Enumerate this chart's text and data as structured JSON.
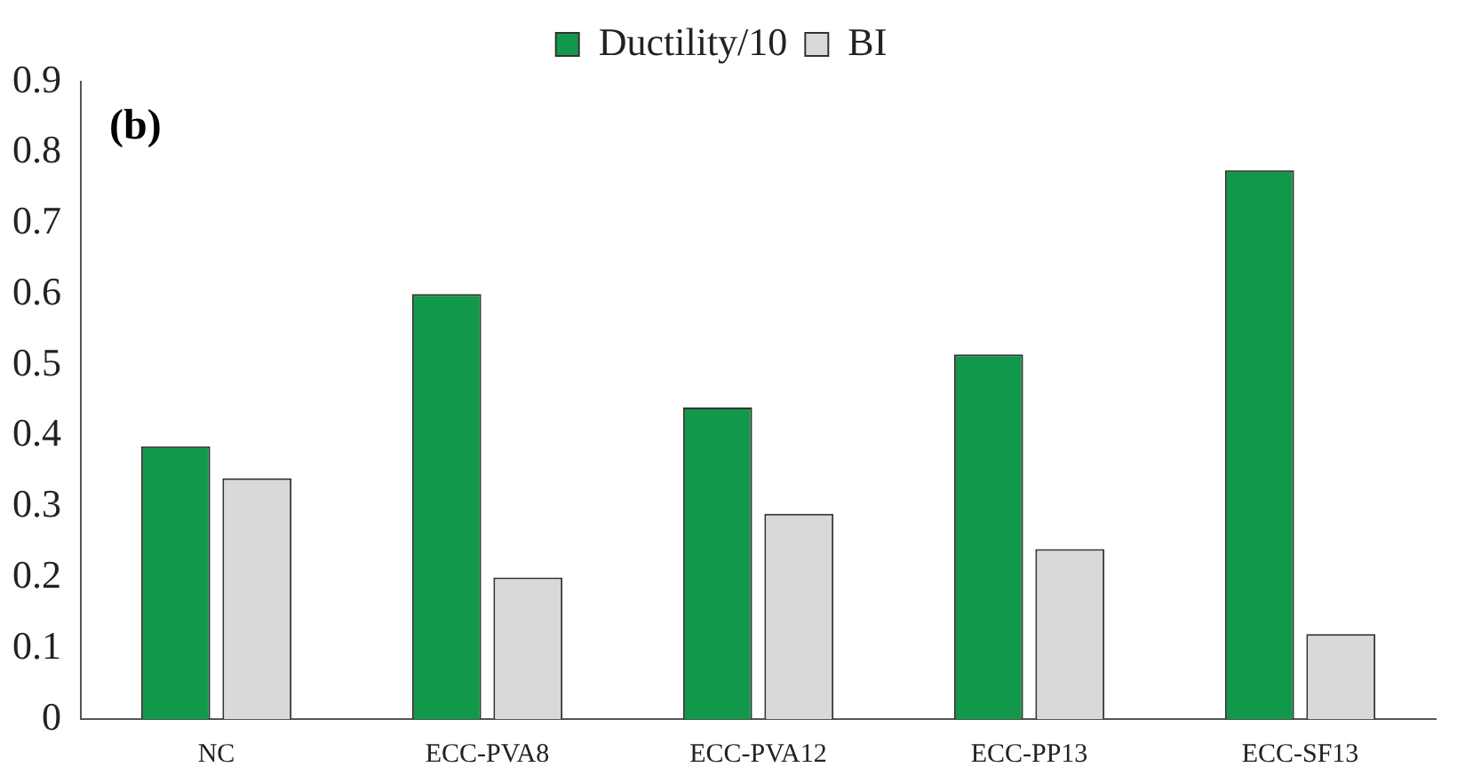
{
  "chart_data": {
    "type": "bar",
    "categories": [
      "NC",
      "ECC-PVA8",
      "ECC-PVA12",
      "ECC-PP13",
      "ECC-SF13"
    ],
    "series": [
      {
        "name": "Ductility/10",
        "color": "#12984a",
        "values": [
          0.385,
          0.6,
          0.44,
          0.515,
          0.775
        ]
      },
      {
        "name": "BI",
        "color": "#d9d9d9",
        "values": [
          0.34,
          0.2,
          0.29,
          0.24,
          0.12
        ]
      }
    ],
    "ylim": [
      0,
      0.9
    ],
    "yticks": [
      0,
      0.1,
      0.2,
      0.3,
      0.4,
      0.5,
      0.6,
      0.7,
      0.8,
      0.9
    ],
    "grid": false,
    "legend": "top",
    "annotations": [
      "(b)"
    ]
  }
}
